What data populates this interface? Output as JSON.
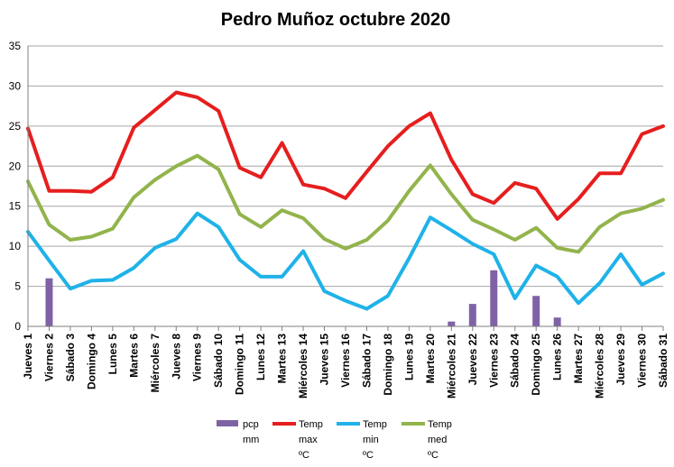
{
  "chart_data": {
    "type": "line",
    "title": "Pedro Muñoz octubre 2020",
    "categories": [
      "Jueves 1",
      "Viernes 2",
      "Sábado 3",
      "Domingo 4",
      "Lunes 5",
      "Martes 6",
      "Miércoles 7",
      "Jueves 8",
      "Viernes 9",
      "Sábado 10",
      "Domingo 11",
      "Lunes 12",
      "Martes 13",
      "Miércoles 14",
      "Jueves 15",
      "Viernes 16",
      "Sábado 17",
      "Domingo 18",
      "Lunes 19",
      "Martes 20",
      "Miércoles 21",
      "Jueves 22",
      "Viernes 23",
      "Sábado 24",
      "Domingo 25",
      "Lunes 26",
      "Martes 27",
      "Miércoles 28",
      "Jueves 29",
      "Viernes 30",
      "Sábado 31"
    ],
    "ylim": [
      0,
      35
    ],
    "yticks": [
      0,
      5,
      10,
      15,
      20,
      25,
      30,
      35
    ],
    "grid": true,
    "legend_position": "bottom",
    "series": [
      {
        "name": [
          "pcp",
          "mm"
        ],
        "type": "bar",
        "color": "#7f62a6",
        "values": [
          0,
          6,
          0,
          0,
          0,
          0,
          0,
          0,
          0,
          0,
          0,
          0,
          0,
          0,
          0,
          0,
          0,
          0,
          0,
          0,
          0.6,
          2.8,
          7,
          0,
          3.8,
          1.1,
          0,
          0,
          0,
          0,
          0
        ]
      },
      {
        "name": [
          "Temp",
          "max",
          "ºC"
        ],
        "type": "line",
        "color": "#e61e1e",
        "values": [
          24.7,
          16.9,
          16.9,
          16.8,
          18.6,
          24.8,
          27,
          29.2,
          28.6,
          26.9,
          19.8,
          18.6,
          22.9,
          17.7,
          17.2,
          16,
          19.3,
          22.5,
          25,
          26.6,
          20.8,
          16.5,
          15.4,
          17.9,
          17.2,
          13.4,
          15.9,
          19.1,
          19.1,
          24,
          25
        ]
      },
      {
        "name": [
          "Temp",
          "min",
          "ºC"
        ],
        "type": "line",
        "color": "#1fb2e8",
        "values": [
          11.8,
          8.2,
          4.7,
          5.7,
          5.8,
          7.3,
          9.8,
          10.9,
          14.1,
          12.4,
          8.3,
          6.2,
          6.2,
          9.4,
          4.4,
          3.2,
          2.2,
          3.8,
          8.5,
          13.6,
          12,
          10.3,
          9,
          3.5,
          7.6,
          6.2,
          2.9,
          5.4,
          9,
          5.2,
          6.6
        ]
      },
      {
        "name": [
          "Temp",
          "med",
          "ºC"
        ],
        "type": "line",
        "color": "#92b44c",
        "values": [
          18.1,
          12.7,
          10.8,
          11.2,
          12.2,
          16.1,
          18.3,
          20,
          21.3,
          19.6,
          14,
          12.4,
          14.5,
          13.5,
          10.9,
          9.7,
          10.8,
          13.2,
          16.9,
          20.1,
          16.5,
          13.3,
          12.1,
          10.8,
          12.3,
          9.8,
          9.3,
          12.4,
          14.1,
          14.7,
          15.8
        ]
      }
    ]
  }
}
